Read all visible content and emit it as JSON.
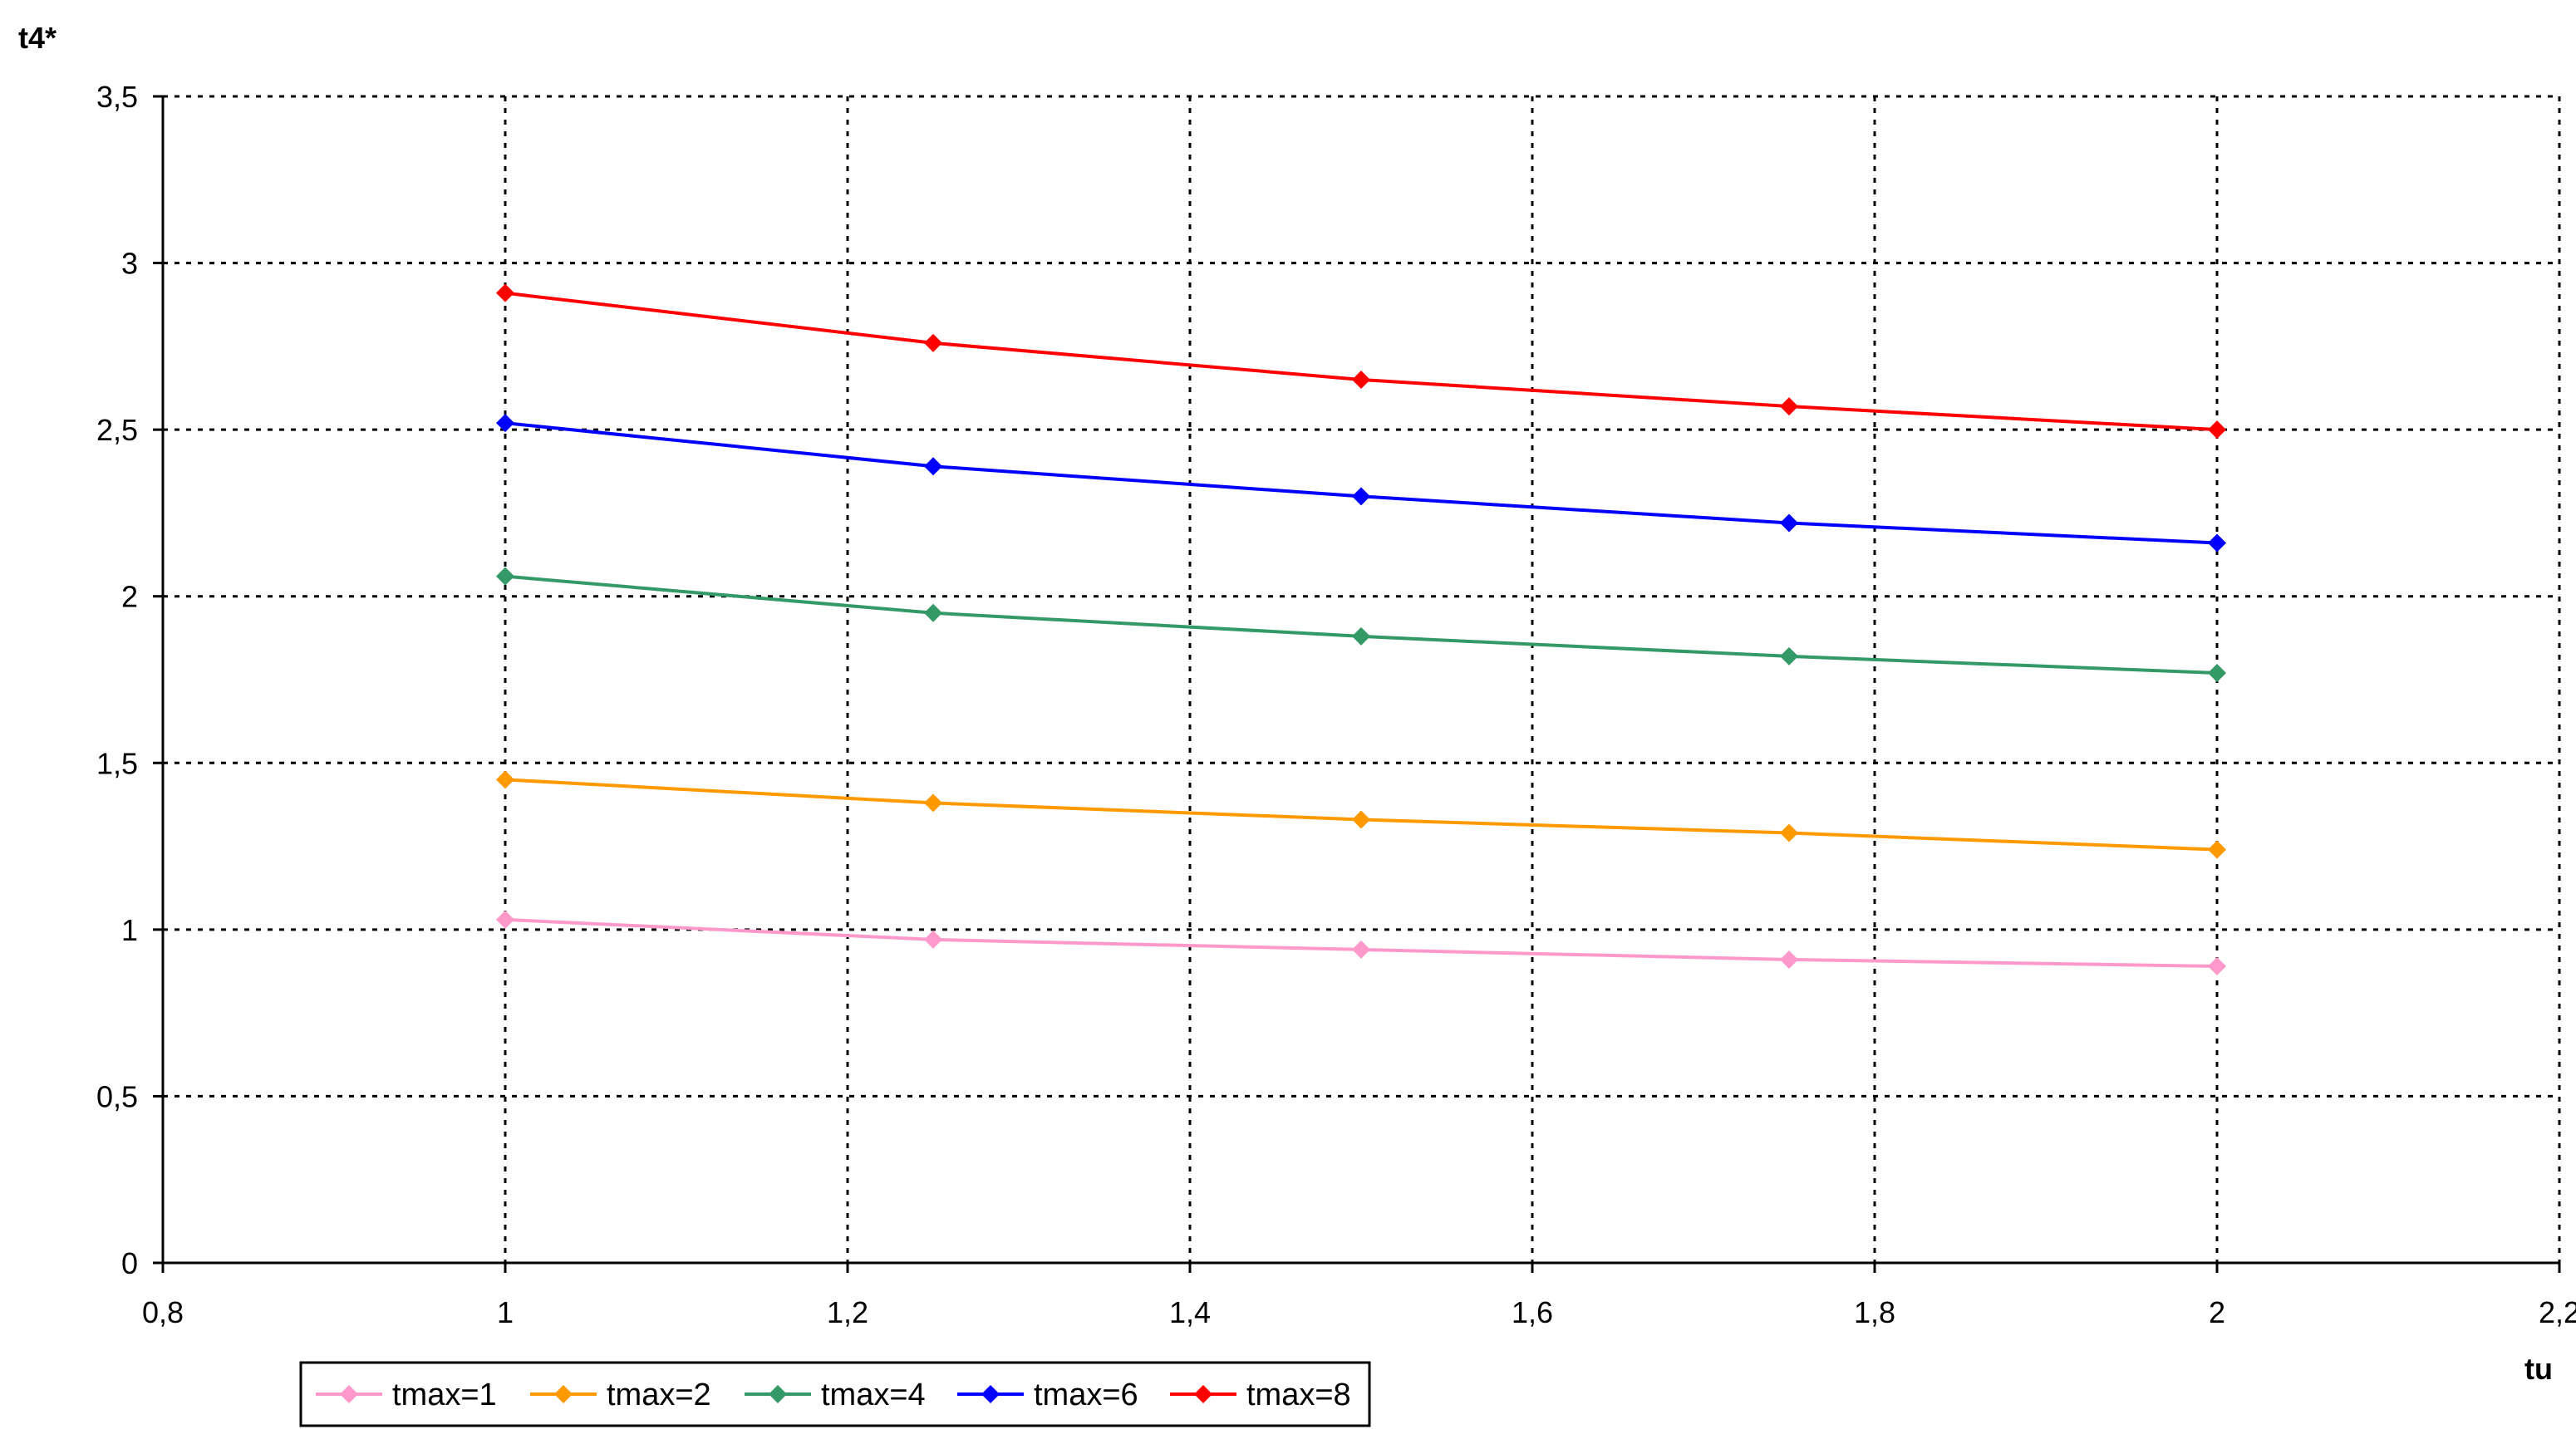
{
  "chart_data": {
    "type": "line",
    "xlabel": "tu",
    "ylabel": "t4*",
    "xlim": [
      0.8,
      2.2
    ],
    "ylim": [
      0,
      3.5
    ],
    "x_ticks": [
      "0,8",
      "1",
      "1,2",
      "1,4",
      "1,6",
      "1,8",
      "2",
      "2,2"
    ],
    "y_ticks": [
      "0",
      "0,5",
      "1",
      "1,5",
      "2",
      "2,5",
      "3",
      "3,5"
    ],
    "grid": true,
    "legend_position": "bottom-left",
    "x": [
      1,
      1.25,
      1.5,
      1.75,
      2
    ],
    "series": [
      {
        "name": "tmax=1",
        "color": "#ff99cc",
        "values": [
          1.03,
          0.97,
          0.94,
          0.91,
          0.89
        ]
      },
      {
        "name": "tmax=2",
        "color": "#ff9900",
        "values": [
          1.45,
          1.38,
          1.33,
          1.29,
          1.24
        ]
      },
      {
        "name": "tmax=4",
        "color": "#339966",
        "values": [
          2.06,
          1.95,
          1.88,
          1.82,
          1.77
        ]
      },
      {
        "name": "tmax=6",
        "color": "#0000ff",
        "values": [
          2.52,
          2.39,
          2.3,
          2.22,
          2.16
        ]
      },
      {
        "name": "tmax=8",
        "color": "#ff0000",
        "values": [
          2.91,
          2.76,
          2.65,
          2.57,
          2.5
        ]
      }
    ]
  }
}
